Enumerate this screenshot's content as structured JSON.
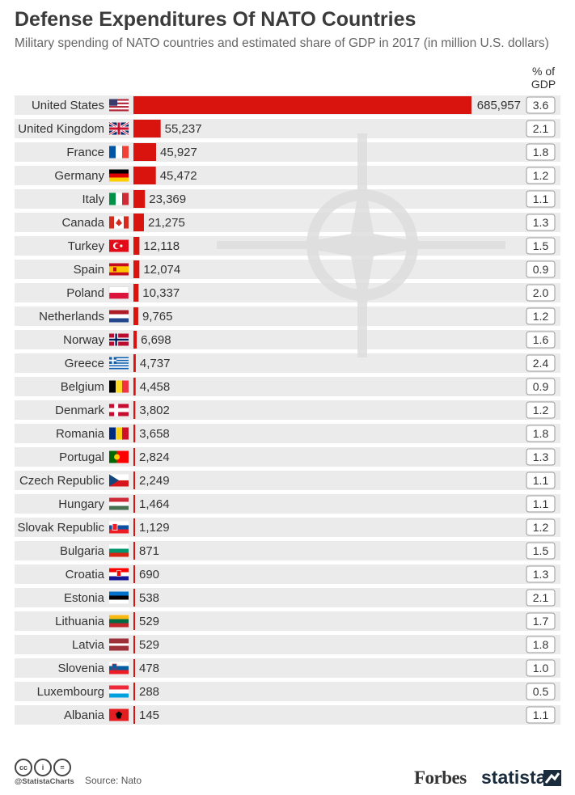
{
  "title": "Defense Expenditures Of NATO Countries",
  "subtitle": "Military spending of NATO countries and estimated share of GDP in 2017 (in million U.S. dollars)",
  "gdp_header": "% of GDP",
  "colors": {
    "bar": "#d9140f",
    "row": "#ebebeb",
    "watermark": "#dedede"
  },
  "footer": {
    "cc_icons": [
      "cc-icon",
      "by-icon",
      "nd-icon"
    ],
    "handle": "@StatistaCharts",
    "source": "Source: Nato",
    "forbes": "Forbes",
    "statista": "statista"
  },
  "chart_data": {
    "type": "bar",
    "orientation": "horizontal",
    "categories": [
      "United States",
      "United Kingdom",
      "France",
      "Germany",
      "Italy",
      "Canada",
      "Turkey",
      "Spain",
      "Poland",
      "Netherlands",
      "Norway",
      "Greece",
      "Belgium",
      "Denmark",
      "Romania",
      "Portugal",
      "Czech Republic",
      "Hungary",
      "Slovak Republic",
      "Bulgaria",
      "Croatia",
      "Estonia",
      "Lithuania",
      "Latvia",
      "Slovenia",
      "Luxembourg",
      "Albania"
    ],
    "value_labels": [
      "685,957",
      "55,237",
      "45,927",
      "45,472",
      "23,369",
      "21,275",
      "12,118",
      "12,074",
      "10,337",
      "9,765",
      "6,698",
      "4,737",
      "4,458",
      "3,802",
      "3,658",
      "2,824",
      "2,249",
      "1,464",
      "1,129",
      "871",
      "690",
      "538",
      "529",
      "529",
      "478",
      "288",
      "145"
    ],
    "values": [
      685957,
      55237,
      45927,
      45472,
      23369,
      21275,
      12118,
      12074,
      10337,
      9765,
      6698,
      4737,
      4458,
      3802,
      3658,
      2824,
      2249,
      1464,
      1129,
      871,
      690,
      538,
      529,
      529,
      478,
      288,
      145
    ],
    "gdp_labels": [
      "3.6",
      "2.1",
      "1.8",
      "1.2",
      "1.1",
      "1.3",
      "1.5",
      "0.9",
      "2.0",
      "1.2",
      "1.6",
      "2.4",
      "0.9",
      "1.2",
      "1.8",
      "1.3",
      "1.1",
      "1.1",
      "1.2",
      "1.5",
      "1.3",
      "2.1",
      "1.7",
      "1.8",
      "1.0",
      "0.5",
      "1.1"
    ],
    "gdp_share": [
      3.6,
      2.1,
      1.8,
      1.2,
      1.1,
      1.3,
      1.5,
      0.9,
      2.0,
      1.2,
      1.6,
      2.4,
      0.9,
      1.2,
      1.8,
      1.3,
      1.1,
      1.1,
      1.2,
      1.5,
      1.3,
      2.1,
      1.7,
      1.8,
      1.0,
      0.5,
      1.1
    ],
    "flags": [
      "flag-us-icon",
      "flag-gb-icon",
      "flag-fr-icon",
      "flag-de-icon",
      "flag-it-icon",
      "flag-ca-icon",
      "flag-tr-icon",
      "flag-es-icon",
      "flag-pl-icon",
      "flag-nl-icon",
      "flag-no-icon",
      "flag-gr-icon",
      "flag-be-icon",
      "flag-dk-icon",
      "flag-ro-icon",
      "flag-pt-icon",
      "flag-cz-icon",
      "flag-hu-icon",
      "flag-sk-icon",
      "flag-bg-icon",
      "flag-hr-icon",
      "flag-ee-icon",
      "flag-lt-icon",
      "flag-lv-icon",
      "flag-si-icon",
      "flag-lu-icon",
      "flag-al-icon"
    ],
    "xlim": [
      0,
      685957
    ],
    "grid": false,
    "legend": "none"
  }
}
